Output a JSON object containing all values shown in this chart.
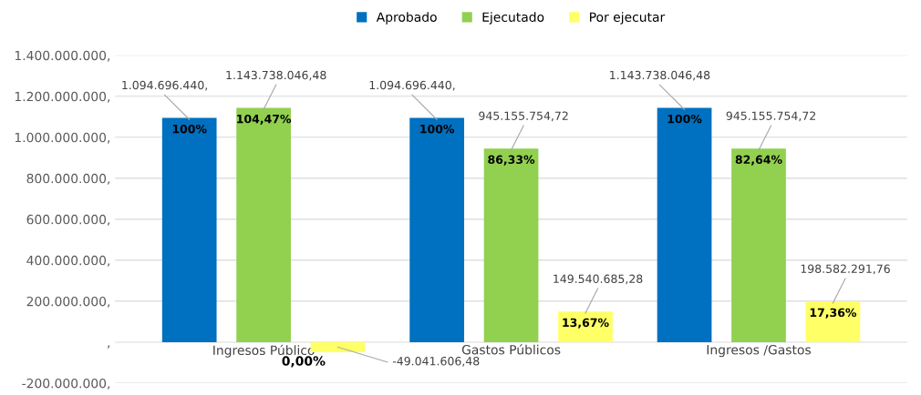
{
  "chart_data": {
    "type": "bar",
    "categories": [
      "Ingresos Público",
      "Gastos Públicos",
      "Ingresos /Gastos"
    ],
    "series": [
      {
        "name": "Aprobado",
        "color": "#0070c0",
        "values": [
          1094696440,
          1094696440,
          1143738046.48
        ],
        "value_labels": [
          "1.094.696.440,",
          "1.094.696.440,",
          "1.143.738.046,48"
        ]
      },
      {
        "name": "Ejecutado",
        "color": "#92d050",
        "values": [
          1143738046.48,
          945155754.72,
          945155754.72
        ],
        "value_labels": [
          "1.143.738.046,48",
          "945.155.754,72",
          "945.155.754,72"
        ]
      },
      {
        "name": "Por ejecutar",
        "color": "#ffff66",
        "values": [
          -49041606.48,
          149540685.28,
          198582291.76
        ],
        "value_labels": [
          "-49.041.606,48",
          "149.540.685,28",
          "198.582.291,76"
        ]
      }
    ],
    "annotations": [
      "100%",
      "104,47%",
      "0,00%",
      "100%",
      "86,33%",
      "13,67%",
      "100%",
      "82,64%",
      "17,36%"
    ],
    "ylim": [
      -200000000,
      1400000000
    ],
    "yticks": [
      {
        "value": -200000000,
        "label": "-200.000.000,"
      },
      {
        "value": 0,
        "label": ","
      },
      {
        "value": 200000000,
        "label": "200.000.000,"
      },
      {
        "value": 400000000,
        "label": "400.000.000,"
      },
      {
        "value": 600000000,
        "label": "600.000.000,"
      },
      {
        "value": 800000000,
        "label": "800.000.000,"
      },
      {
        "value": 1000000000,
        "label": "1.000.000.000,"
      },
      {
        "value": 1200000000,
        "label": "1.200.000.000,"
      },
      {
        "value": 1400000000,
        "label": "1.400.000.000,"
      }
    ],
    "grid": "y",
    "legend": "top"
  }
}
